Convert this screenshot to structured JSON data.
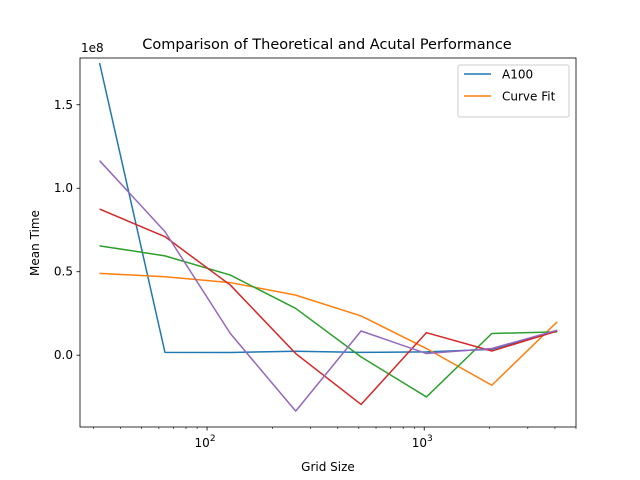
{
  "chart_data": {
    "type": "line",
    "title": "Comparison of Theoretical and Acutal Performance",
    "xlabel": "Grid Size",
    "ylabel": "Mean Time",
    "y_offset_label": "1e8",
    "x_scale": "log",
    "xlim": [
      26,
      5000
    ],
    "ylim": [
      -0.43,
      1.78
    ],
    "y_unit_note": "values in units of 1e8",
    "x_ticks": [
      {
        "value": 100,
        "base": "10",
        "exp": "2"
      },
      {
        "value": 1000,
        "base": "10",
        "exp": "3"
      }
    ],
    "y_ticks": [
      {
        "value": 0.0,
        "label": "0.0"
      },
      {
        "value": 0.5,
        "label": "0.5"
      },
      {
        "value": 1.0,
        "label": "1.0"
      },
      {
        "value": 1.5,
        "label": "1.5"
      }
    ],
    "grid": false,
    "legend_position": "top-right",
    "x": [
      32,
      64,
      128,
      256,
      512,
      1024,
      2048,
      4096
    ],
    "series": [
      {
        "name": "A100",
        "color": "#1f77b4",
        "values": [
          1.75,
          0.017,
          0.016,
          0.024,
          0.017,
          0.02,
          0.035,
          0.145
        ]
      },
      {
        "name": "Curve Fit",
        "color": "#ff7f0e",
        "values": [
          0.49,
          0.47,
          0.435,
          0.36,
          0.235,
          0.04,
          -0.18,
          0.2
        ]
      },
      {
        "name": "",
        "color": "#2ca02c",
        "values": [
          0.655,
          0.595,
          0.48,
          0.28,
          -0.01,
          -0.25,
          0.13,
          0.14
        ]
      },
      {
        "name": "",
        "color": "#d62728",
        "values": [
          0.875,
          0.71,
          0.42,
          0.01,
          -0.295,
          0.135,
          0.025,
          0.145
        ]
      },
      {
        "name": "",
        "color": "#9467bd",
        "values": [
          1.165,
          0.74,
          0.13,
          -0.335,
          0.145,
          0.01,
          0.04,
          0.15
        ]
      }
    ]
  }
}
